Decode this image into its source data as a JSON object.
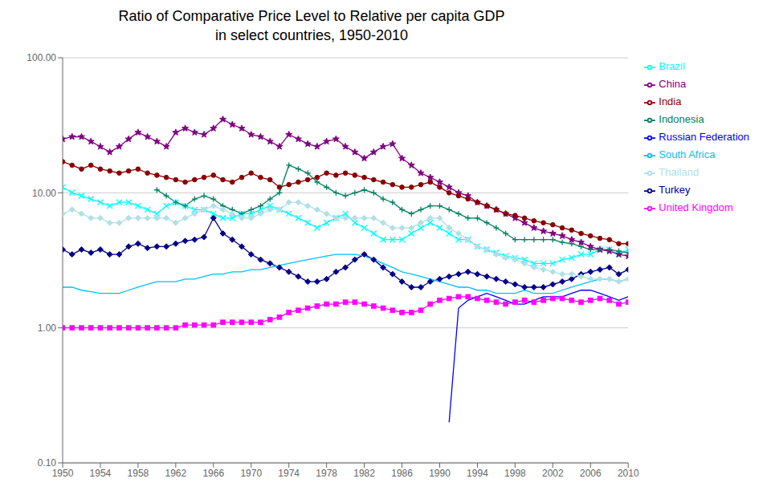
{
  "chart_data": {
    "type": "line",
    "title": "Ratio of Comparative Price Level to Relative per capita GDP\nin select countries, 1950-2010",
    "log": "y",
    "grid": true,
    "legend": "right",
    "x": [
      1950,
      1951,
      1952,
      1953,
      1954,
      1955,
      1956,
      1957,
      1958,
      1959,
      1960,
      1961,
      1962,
      1963,
      1964,
      1965,
      1966,
      1967,
      1968,
      1969,
      1970,
      1971,
      1972,
      1973,
      1974,
      1975,
      1976,
      1977,
      1978,
      1979,
      1980,
      1981,
      1982,
      1983,
      1984,
      1985,
      1986,
      1987,
      1988,
      1989,
      1990,
      1991,
      1992,
      1993,
      1994,
      1995,
      1996,
      1997,
      1998,
      1999,
      2000,
      2001,
      2002,
      2003,
      2004,
      2005,
      2006,
      2007,
      2008,
      2009,
      2010
    ],
    "xlim": [
      1950,
      2010
    ],
    "xticks": [
      1950,
      1954,
      1958,
      1962,
      1966,
      1970,
      1974,
      1978,
      1982,
      1986,
      1990,
      1994,
      1998,
      2002,
      2006,
      2010
    ],
    "ylim": [
      0.1,
      100
    ],
    "yticks": [
      {
        "value": 0.1,
        "label": "0.10"
      },
      {
        "value": 1.0,
        "label": "1.00"
      },
      {
        "value": 10.0,
        "label": "10.00"
      },
      {
        "value": 100.0,
        "label": "100.00"
      }
    ],
    "series": [
      {
        "name": "Turkey",
        "color": "#00008B",
        "marker": "diamond",
        "values": [
          3.8,
          3.5,
          3.8,
          3.6,
          3.8,
          3.5,
          3.5,
          4.0,
          4.2,
          3.9,
          4.0,
          4.0,
          4.2,
          4.4,
          4.5,
          4.7,
          6.5,
          5.0,
          4.5,
          4.0,
          3.5,
          3.2,
          3.0,
          2.8,
          2.6,
          2.4,
          2.2,
          2.2,
          2.3,
          2.6,
          2.8,
          3.2,
          3.5,
          3.2,
          2.8,
          2.5,
          2.2,
          2.0,
          2.0,
          2.2,
          2.3,
          2.4,
          2.5,
          2.6,
          2.5,
          2.4,
          2.3,
          2.2,
          2.1,
          2.0,
          2.0,
          2.0,
          2.1,
          2.2,
          2.3,
          2.5,
          2.6,
          2.7,
          2.8,
          2.5,
          2.7
        ]
      },
      {
        "name": "United Kingdom",
        "color": "#FF00FF",
        "marker": "square",
        "values": [
          1.0,
          1.0,
          1.0,
          1.0,
          1.0,
          1.0,
          1.0,
          1.0,
          1.0,
          1.0,
          1.0,
          1.0,
          1.0,
          1.05,
          1.05,
          1.05,
          1.05,
          1.1,
          1.1,
          1.1,
          1.1,
          1.1,
          1.15,
          1.2,
          1.3,
          1.35,
          1.4,
          1.45,
          1.5,
          1.5,
          1.55,
          1.55,
          1.5,
          1.45,
          1.4,
          1.35,
          1.3,
          1.3,
          1.35,
          1.5,
          1.6,
          1.65,
          1.7,
          1.7,
          1.65,
          1.6,
          1.55,
          1.5,
          1.55,
          1.6,
          1.55,
          1.6,
          1.65,
          1.65,
          1.6,
          1.55,
          1.6,
          1.65,
          1.6,
          1.5,
          1.55
        ]
      },
      {
        "name": "Brazil",
        "color": "#00FFFF",
        "marker": "x",
        "values": [
          11.0,
          10.0,
          9.5,
          9.0,
          8.5,
          8.0,
          8.5,
          8.5,
          8.0,
          7.5,
          7.0,
          8.0,
          8.5,
          8.0,
          7.5,
          7.5,
          7.0,
          6.5,
          6.5,
          7.0,
          7.0,
          7.5,
          8.0,
          7.5,
          7.0,
          6.5,
          6.0,
          5.5,
          6.0,
          6.5,
          7.0,
          6.0,
          5.5,
          5.0,
          4.5,
          4.5,
          4.5,
          5.0,
          5.5,
          6.0,
          5.5,
          5.0,
          4.5,
          4.5,
          4.0,
          3.8,
          3.6,
          3.4,
          3.3,
          3.2,
          3.0,
          3.0,
          3.0,
          3.2,
          3.3,
          3.5,
          3.5,
          3.8,
          3.8,
          3.5,
          3.8
        ]
      },
      {
        "name": "China",
        "color": "#800080",
        "marker": "star",
        "values": [
          25,
          26,
          26,
          24,
          22,
          20,
          22,
          25,
          28,
          26,
          24,
          22,
          28,
          30,
          28,
          27,
          30,
          35,
          32,
          30,
          27,
          26,
          24,
          22,
          27,
          25,
          23,
          22,
          24,
          25,
          22,
          20,
          18,
          20,
          22,
          23,
          18,
          16,
          14,
          13,
          12,
          11,
          10,
          9.5,
          8.5,
          8.0,
          7.5,
          7.0,
          6.5,
          6.0,
          5.5,
          5.2,
          5.0,
          4.8,
          4.5,
          4.3,
          4.0,
          3.8,
          3.7,
          3.5,
          3.4
        ]
      },
      {
        "name": "India",
        "color": "#8B0000",
        "marker": "circle",
        "values": [
          17,
          16,
          15,
          16,
          15,
          14.5,
          14,
          14.5,
          15,
          14,
          13.5,
          13,
          12.5,
          12,
          12.5,
          13,
          13.5,
          12.5,
          12,
          13,
          14,
          13,
          12.5,
          11,
          11.5,
          12,
          12.5,
          13,
          14,
          13.5,
          14,
          13.5,
          13,
          12.5,
          12,
          11.5,
          11,
          11,
          11.5,
          12,
          11,
          10,
          9.5,
          9,
          8.5,
          8,
          7.5,
          7,
          6.8,
          6.5,
          6.2,
          6.0,
          5.8,
          5.5,
          5.3,
          5.0,
          4.8,
          4.6,
          4.5,
          4.2,
          4.2
        ]
      },
      {
        "name": "Indonesia",
        "color": "#008060",
        "marker": "plus",
        "values": [
          null,
          null,
          null,
          null,
          null,
          null,
          null,
          null,
          null,
          null,
          10.5,
          9.5,
          8.5,
          8.0,
          9.0,
          9.5,
          9.0,
          8.0,
          7.5,
          7.0,
          7.5,
          8.0,
          9.0,
          10.0,
          16.0,
          15.0,
          14.0,
          12.0,
          11.0,
          10.0,
          9.5,
          10.0,
          10.5,
          10.0,
          9.0,
          8.5,
          7.5,
          7.0,
          7.5,
          8.0,
          8.0,
          7.5,
          7.0,
          6.5,
          6.5,
          6.0,
          5.5,
          5.0,
          4.5,
          4.5,
          4.5,
          4.5,
          4.5,
          4.3,
          4.2,
          4.0,
          3.8,
          3.8,
          3.8,
          3.7,
          3.6
        ]
      },
      {
        "name": "Russian Federation",
        "color": "#0000FF",
        "marker": "none",
        "values": [
          null,
          null,
          null,
          null,
          null,
          null,
          null,
          null,
          null,
          null,
          null,
          null,
          null,
          null,
          null,
          null,
          null,
          null,
          null,
          null,
          null,
          null,
          null,
          null,
          null,
          null,
          null,
          null,
          null,
          null,
          null,
          null,
          null,
          null,
          null,
          null,
          null,
          null,
          null,
          null,
          null,
          0.2,
          1.4,
          1.6,
          1.7,
          1.8,
          1.7,
          1.6,
          1.5,
          1.5,
          1.6,
          1.7,
          1.7,
          1.7,
          1.8,
          1.9,
          1.9,
          1.8,
          1.7,
          1.6,
          1.7
        ]
      },
      {
        "name": "South Africa",
        "color": "#00BFFF",
        "marker": "none",
        "values": [
          2.0,
          2.0,
          1.9,
          1.85,
          1.8,
          1.8,
          1.8,
          1.9,
          2.0,
          2.1,
          2.2,
          2.2,
          2.2,
          2.3,
          2.3,
          2.4,
          2.5,
          2.5,
          2.6,
          2.6,
          2.7,
          2.7,
          2.8,
          2.9,
          3.0,
          3.1,
          3.2,
          3.3,
          3.4,
          3.5,
          3.5,
          3.5,
          3.4,
          3.2,
          3.0,
          2.8,
          2.6,
          2.5,
          2.4,
          2.3,
          2.2,
          2.1,
          2.0,
          2.0,
          1.9,
          1.9,
          1.8,
          1.8,
          1.8,
          1.9,
          1.8,
          1.8,
          1.8,
          1.9,
          2.0,
          2.1,
          2.2,
          2.3,
          2.3,
          2.2,
          2.3
        ]
      },
      {
        "name": "Thailand",
        "color": "#B0E0E6",
        "marker": "diamond",
        "values": [
          7.0,
          7.5,
          7.0,
          6.5,
          6.5,
          6.0,
          6.0,
          6.5,
          6.5,
          6.5,
          6.5,
          6.5,
          6.0,
          6.5,
          7.0,
          7.5,
          8.0,
          7.5,
          7.0,
          6.5,
          6.5,
          7.0,
          7.5,
          7.5,
          8.5,
          8.5,
          8.0,
          7.5,
          7.0,
          6.5,
          6.5,
          6.5,
          6.5,
          6.5,
          6.0,
          5.5,
          5.5,
          5.5,
          6.0,
          6.5,
          6.5,
          5.5,
          5.0,
          4.5,
          4.0,
          3.8,
          3.5,
          3.3,
          3.2,
          3.0,
          2.8,
          2.7,
          2.6,
          2.5,
          2.5,
          2.4,
          2.3,
          2.3,
          2.3,
          2.2,
          2.3
        ]
      }
    ]
  }
}
